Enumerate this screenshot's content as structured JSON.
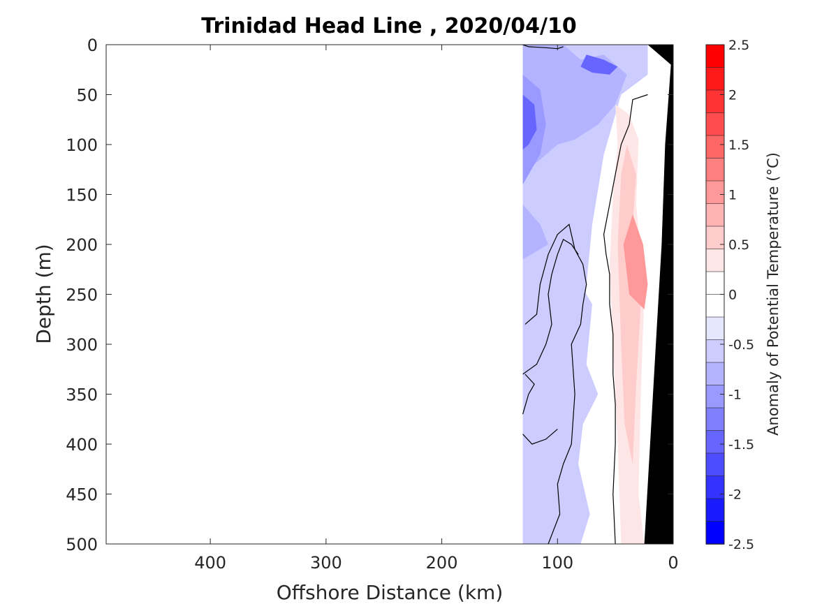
{
  "chart_data": {
    "type": "heatmap",
    "title": "Trinidad Head Line , 2020/04/10",
    "xlabel": "Offshore Distance (km)",
    "ylabel": "Depth (m)",
    "xlim": [
      490,
      0
    ],
    "ylim": [
      0,
      500
    ],
    "x_reversed": true,
    "y_reversed": true,
    "xticks": [
      400,
      300,
      200,
      100,
      0
    ],
    "yticks": [
      0,
      50,
      100,
      150,
      200,
      250,
      300,
      350,
      400,
      450,
      500
    ],
    "xticklabels": [
      "400",
      "300",
      "200",
      "100",
      "0"
    ],
    "yticklabels": [
      "0",
      "50",
      "100",
      "150",
      "200",
      "250",
      "300",
      "350",
      "400",
      "450",
      "500"
    ],
    "colorbar": {
      "label": "Anomaly of Potential Temperature (°C)",
      "range": [
        -2.5,
        2.5
      ],
      "ticks": [
        2.5,
        2,
        1.5,
        1,
        0.5,
        0,
        -0.5,
        -1,
        -1.5,
        -2,
        -2.5
      ],
      "ticklabels": [
        "2.5",
        "2",
        "1.5",
        "1",
        "0.5",
        "0",
        "-0.5",
        "-1",
        "-1.5",
        "-2",
        "-2.5"
      ],
      "levels": [
        2.5,
        2.25,
        2.0,
        1.75,
        1.5,
        1.25,
        1.0,
        0.75,
        0.5,
        0.25,
        0.0,
        -0.25,
        -0.5,
        -0.75,
        -1.0,
        -1.25,
        -1.5,
        -1.75,
        -2.0,
        -2.25,
        -2.5
      ],
      "colors": [
        "#ff0000",
        "#ff1a1a",
        "#ff3333",
        "#ff4d4d",
        "#ff6666",
        "#ff8080",
        "#ff9999",
        "#ffb3b3",
        "#ffcccc",
        "#ffe6e6",
        "#ffffff",
        "#ffffff",
        "#e6e6ff",
        "#ccccff",
        "#b3b3ff",
        "#9999ff",
        "#8080ff",
        "#6666ff",
        "#4d4dff",
        "#3333ff",
        "#1a1aff",
        "#0000ff"
      ]
    },
    "regions": [
      {
        "anomaly": -0.5,
        "points": [
          [
            130,
            0
          ],
          [
            22,
            0
          ],
          [
            22,
            30
          ],
          [
            45,
            50
          ],
          [
            60,
            110
          ],
          [
            70,
            180
          ],
          [
            75,
            240
          ],
          [
            80,
            300
          ],
          [
            85,
            400
          ],
          [
            90,
            500
          ],
          [
            130,
            500
          ]
        ]
      },
      {
        "anomaly": -0.9,
        "points": [
          [
            130,
            0
          ],
          [
            95,
            0
          ],
          [
            80,
            15
          ],
          [
            60,
            10
          ],
          [
            40,
            30
          ],
          [
            50,
            60
          ],
          [
            65,
            80
          ],
          [
            85,
            95
          ],
          [
            100,
            100
          ],
          [
            130,
            130
          ]
        ]
      },
      {
        "anomaly": -1.1,
        "points": [
          [
            130,
            30
          ],
          [
            115,
            45
          ],
          [
            110,
            80
          ],
          [
            115,
            110
          ],
          [
            130,
            140
          ]
        ]
      },
      {
        "anomaly": -1.7,
        "points": [
          [
            130,
            50
          ],
          [
            120,
            60
          ],
          [
            118,
            85
          ],
          [
            125,
            100
          ],
          [
            130,
            105
          ]
        ]
      },
      {
        "anomaly": -1.5,
        "points": [
          [
            75,
            10
          ],
          [
            60,
            15
          ],
          [
            48,
            22
          ],
          [
            55,
            30
          ],
          [
            70,
            28
          ],
          [
            80,
            22
          ]
        ]
      },
      {
        "anomaly": -0.8,
        "points": [
          [
            130,
            160
          ],
          [
            115,
            180
          ],
          [
            108,
            200
          ],
          [
            130,
            215
          ]
        ]
      },
      {
        "anomaly": -0.7,
        "points": [
          [
            80,
            240
          ],
          [
            70,
            260
          ],
          [
            75,
            320
          ],
          [
            65,
            350
          ],
          [
            78,
            380
          ],
          [
            82,
            420
          ],
          [
            72,
            470
          ],
          [
            80,
            500
          ],
          [
            92,
            500
          ],
          [
            95,
            440
          ],
          [
            92,
            360
          ],
          [
            90,
            280
          ]
        ]
      },
      {
        "anomaly": 0.4,
        "points": [
          [
            50,
            60
          ],
          [
            38,
            70
          ],
          [
            30,
            95
          ],
          [
            32,
            160
          ],
          [
            25,
            250
          ],
          [
            28,
            350
          ],
          [
            30,
            450
          ],
          [
            25,
            500
          ],
          [
            45,
            500
          ],
          [
            48,
            400
          ],
          [
            52,
            300
          ],
          [
            55,
            220
          ],
          [
            52,
            150
          ],
          [
            48,
            100
          ]
        ]
      },
      {
        "anomaly": 0.7,
        "points": [
          [
            40,
            100
          ],
          [
            32,
            130
          ],
          [
            35,
            180
          ],
          [
            28,
            260
          ],
          [
            32,
            340
          ],
          [
            35,
            420
          ],
          [
            42,
            380
          ],
          [
            45,
            300
          ],
          [
            48,
            200
          ],
          [
            45,
            130
          ]
        ]
      },
      {
        "anomaly": 1.2,
        "points": [
          [
            35,
            170
          ],
          [
            26,
            200
          ],
          [
            22,
            240
          ],
          [
            25,
            265
          ],
          [
            38,
            250
          ],
          [
            43,
            200
          ]
        ]
      }
    ],
    "zero_contours": [
      [
        [
          130,
          0
        ],
        [
          125,
          2
        ],
        [
          110,
          3
        ],
        [
          100,
          4
        ],
        [
          95,
          2
        ]
      ],
      [
        [
          22,
          50
        ],
        [
          35,
          55
        ],
        [
          38,
          80
        ],
        [
          45,
          100
        ],
        [
          50,
          130
        ],
        [
          55,
          160
        ],
        [
          60,
          190
        ],
        [
          58,
          210
        ],
        [
          55,
          230
        ],
        [
          55,
          260
        ],
        [
          52,
          290
        ],
        [
          52,
          330
        ],
        [
          50,
          360
        ],
        [
          50,
          400
        ],
        [
          52,
          450
        ],
        [
          50,
          500
        ]
      ],
      [
        [
          128,
          280
        ],
        [
          118,
          270
        ],
        [
          115,
          240
        ],
        [
          108,
          210
        ],
        [
          100,
          190
        ],
        [
          90,
          180
        ],
        [
          85,
          205
        ],
        [
          78,
          220
        ],
        [
          75,
          240
        ],
        [
          78,
          260
        ],
        [
          80,
          280
        ],
        [
          88,
          300
        ],
        [
          85,
          350
        ],
        [
          88,
          400
        ],
        [
          95,
          420
        ],
        [
          100,
          440
        ],
        [
          98,
          470
        ],
        [
          108,
          500
        ]
      ],
      [
        [
          130,
          330
        ],
        [
          118,
          320
        ],
        [
          110,
          300
        ],
        [
          105,
          280
        ],
        [
          108,
          250
        ],
        [
          105,
          230
        ],
        [
          100,
          210
        ],
        [
          95,
          195
        ],
        [
          88,
          200
        ],
        [
          82,
          210
        ]
      ],
      [
        [
          130,
          370
        ],
        [
          125,
          350
        ],
        [
          120,
          340
        ],
        [
          128,
          330
        ]
      ],
      [
        [
          130,
          390
        ],
        [
          122,
          400
        ],
        [
          110,
          395
        ],
        [
          100,
          385
        ]
      ]
    ],
    "seafloor": [
      [
        22,
        0
      ],
      [
        0,
        0
      ],
      [
        0,
        500
      ],
      [
        25,
        500
      ],
      [
        20,
        400
      ],
      [
        15,
        300
      ],
      [
        10,
        200
      ],
      [
        7,
        100
      ],
      [
        2,
        20
      ]
    ]
  }
}
